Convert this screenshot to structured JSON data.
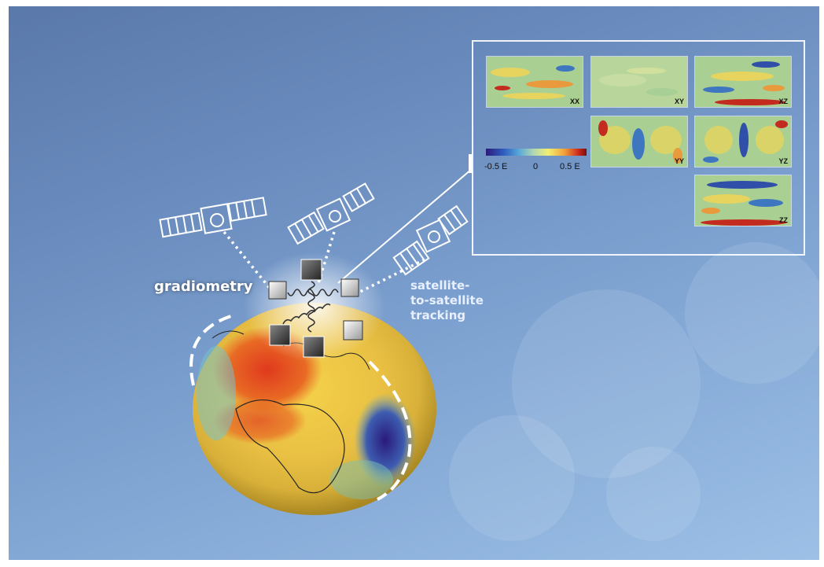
{
  "labels": {
    "gradiometry": "gradiometry",
    "sst_line1": "satellite-",
    "sst_line2": "to-satellite",
    "sst_line3": "tracking"
  },
  "panels": [
    {
      "label": "XX"
    },
    {
      "label": "XY"
    },
    {
      "label": "XZ"
    },
    {
      "label": "YY"
    },
    {
      "label": "YZ"
    },
    {
      "label": "ZZ"
    }
  ],
  "colorbar": {
    "ticks": [
      "-0.5 E",
      "0",
      "0.5 E"
    ],
    "min": -0.5,
    "max": 0.5
  },
  "icons": [
    "satellite-icon",
    "gradiometer-icon",
    "geoid-globe"
  ],
  "colors": {
    "background_top": "#5a79aa",
    "background_bottom": "#9cc0e6",
    "frame": "#ffffff",
    "label_text": "#ffffff"
  }
}
